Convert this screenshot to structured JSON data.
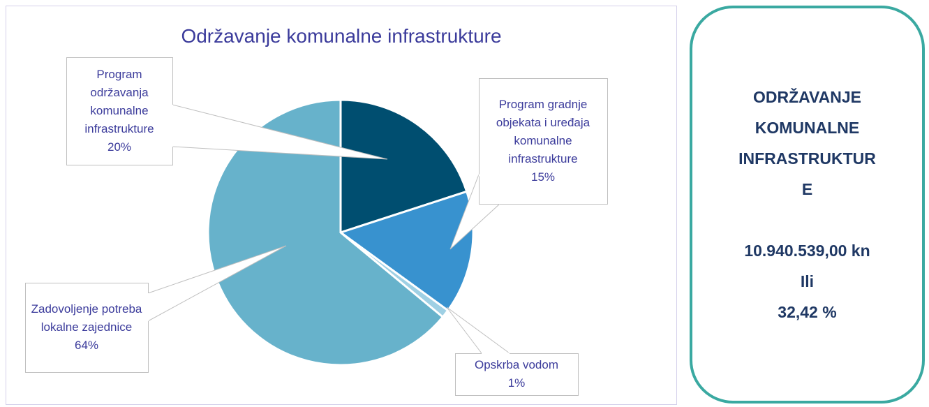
{
  "chart_data": {
    "type": "pie",
    "title": "Održavanje komunalne infrastrukture",
    "categories": [
      "Program održavanja komunalne infrastrukture",
      "Program gradnje objekata i uređaja komunalne infrastrukture",
      "Opskrba vodom",
      "Zadovoljenje potreba lokalne zajednice"
    ],
    "values": [
      20,
      15,
      1,
      64
    ],
    "value_labels": [
      "20%",
      "15%",
      "1%",
      "64%"
    ],
    "colors": [
      "#004e70",
      "#3892cf",
      "#9fd0e4",
      "#67b2cb"
    ]
  },
  "panel": {
    "title_lines": [
      "ODRŽAVANJE",
      "KOMUNALNE",
      "INFRASTRUKTUR",
      "E"
    ],
    "amount": "10.940.539,00 kn",
    "connector": "Ili",
    "share": "32,42 %"
  }
}
